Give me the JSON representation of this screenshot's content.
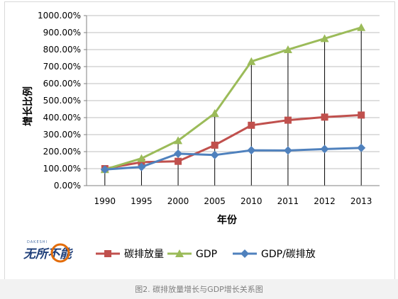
{
  "chart_data": {
    "type": "line",
    "categories": [
      "1990",
      "1995",
      "2000",
      "2005",
      "2010",
      "2011",
      "2012",
      "2013"
    ],
    "ylabel": "增长比例",
    "xlabel": "年份",
    "ylim": [
      0,
      1000
    ],
    "y_ticks": [
      "0.00%",
      "100.00%",
      "200.00%",
      "300.00%",
      "400.00%",
      "500.00%",
      "600.00%",
      "700.00%",
      "800.00%",
      "900.00%",
      "1000.00%"
    ],
    "grid": "horizontal",
    "legend_position": "bottom",
    "drop_lines": true,
    "series": [
      {
        "name": "碳排放量",
        "color": "#c0504d",
        "marker": "square",
        "values": [
          100,
          138,
          143,
          238,
          355,
          385,
          403,
          415
        ]
      },
      {
        "name": "GDP",
        "color": "#9bbb59",
        "marker": "triangle",
        "values": [
          95,
          160,
          265,
          425,
          730,
          800,
          865,
          930
        ]
      },
      {
        "name": "GDP/碳排放",
        "color": "#4f81bd",
        "marker": "diamond",
        "values": [
          95,
          110,
          188,
          180,
          208,
          207,
          215,
          222
        ]
      }
    ]
  },
  "logo": {
    "text": "无所不能",
    "sub": "DAKESHI"
  },
  "caption": "图2. 碳排放量增长与GDP增长关系图"
}
